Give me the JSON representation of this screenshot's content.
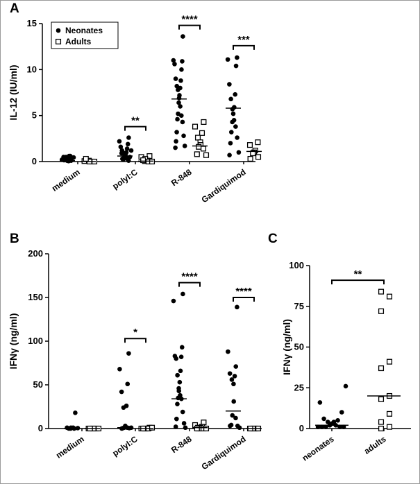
{
  "chart_data": [
    {
      "panel": "A",
      "type": "scatter",
      "ylabel": "IL-12 (IU/ml)",
      "ylim": [
        0,
        15
      ],
      "yticks": [
        0,
        5,
        10,
        15
      ],
      "categories": [
        "medium",
        "polyI:C",
        "R-848",
        "Gardiquimod"
      ],
      "legend": {
        "position": "top-left",
        "entries": [
          {
            "label": "Neonates",
            "marker": "filled-circle"
          },
          {
            "label": "Adults",
            "marker": "open-square"
          }
        ]
      },
      "series": [
        {
          "name": "Neonates",
          "marker": "circle",
          "points": [
            [
              [
                0.1,
                0.2,
                0.3,
                0.5,
                0.6,
                0.4,
                0.2,
                0.3,
                0.1,
                0.05,
                0.5,
                0.6,
                0.2,
                0.35,
                0.15,
                0.45
              ],
              0.1
            ],
            [
              [
                2.6,
                2.2,
                1.9,
                1.6,
                1.4,
                1.2,
                1.0,
                0.9,
                0.8,
                0.7,
                0.6,
                0.5,
                0.4,
                0.3,
                0.2,
                0.1,
                0.3,
                0.5,
                0.9,
                1.2
              ],
              0.6
            ],
            [
              [
                13.6,
                11.0,
                10.9,
                10.6,
                10.0,
                9.0,
                8.8,
                8.2,
                8.0,
                7.8,
                7.2,
                6.9,
                6.4,
                6.0,
                5.2,
                5.0,
                4.6,
                4.3,
                3.2,
                2.8,
                2.2,
                1.7,
                1.5
              ],
              6.8
            ],
            [
              [
                11.3,
                11.1,
                10.4,
                8.4,
                7.3,
                6.8,
                5.9,
                5.7,
                5.2,
                4.5,
                4.3,
                3.8,
                3.2,
                2.6,
                2.0,
                1.0,
                0.7
              ],
              5.8
            ]
          ]
        },
        {
          "name": "Adults",
          "marker": "square",
          "points": [
            [
              [
                0.0,
                0.05,
                0.1,
                0.0,
                0.3,
                0.0
              ],
              0.0
            ],
            [
              [
                0.6,
                0.5,
                0.1,
                0.05,
                0.3,
                0.0,
                0.15,
                0.0
              ],
              0.05
            ],
            [
              [
                4.3,
                3.8,
                3.1,
                2.6,
                2.1,
                1.8,
                1.6,
                1.4,
                0.8,
                0.7
              ],
              1.7
            ],
            [
              [
                2.1,
                1.8,
                1.2,
                1.0,
                0.9,
                0.5,
                0.3
              ],
              1.1
            ]
          ]
        }
      ],
      "significance": [
        {
          "pair": 1,
          "label": "**",
          "y": 3.8
        },
        {
          "pair": 2,
          "label": "****",
          "y": 14.8
        },
        {
          "pair": 3,
          "label": "***",
          "y": 12.6
        }
      ]
    },
    {
      "panel": "B",
      "type": "scatter",
      "ylabel": "IFNγ (ng/ml)",
      "ylim": [
        0,
        200
      ],
      "yticks": [
        0,
        50,
        100,
        150,
        200
      ],
      "categories": [
        "medium",
        "polyI:C",
        "R-848",
        "Gardiquimod"
      ],
      "series": [
        {
          "name": "Neonates",
          "marker": "circle",
          "points": [
            [
              [
                18,
                1,
                1,
                0,
                1,
                0,
                0,
                0.5
              ],
              0
            ],
            [
              [
                86,
                68,
                51,
                42,
                26,
                24,
                3,
                2,
                1,
                1,
                0.5,
                0.5,
                0,
                1
              ],
              1
            ],
            [
              [
                154,
                146,
                93,
                83,
                82,
                80,
                66,
                61,
                53,
                46,
                43,
                38,
                35,
                34,
                28,
                19,
                11,
                6,
                2,
                1
              ],
              34
            ],
            [
              [
                139,
                88,
                71,
                63,
                60,
                56,
                51,
                31,
                15,
                12,
                4,
                3,
                3,
                1
              ],
              20
            ]
          ]
        },
        {
          "name": "Adults",
          "marker": "square",
          "points": [
            [
              [
                0,
                0,
                0,
                0,
                0,
                0
              ],
              0
            ],
            [
              [
                1,
                0,
                0,
                0,
                0,
                0,
                0,
                1
              ],
              0
            ],
            [
              [
                7,
                4,
                2,
                1,
                1,
                0,
                0,
                0,
                0,
                0
              ],
              1
            ],
            [
              [
                0,
                0,
                0,
                0,
                0,
                0,
                0
              ],
              0
            ]
          ]
        }
      ],
      "significance": [
        {
          "pair": 1,
          "label": "*",
          "y": 103
        },
        {
          "pair": 2,
          "label": "****",
          "y": 167
        },
        {
          "pair": 3,
          "label": "****",
          "y": 150
        }
      ]
    },
    {
      "panel": "C",
      "type": "scatter",
      "ylabel": "IFNγ (ng/ml)",
      "ylim": [
        0,
        100
      ],
      "yticks": [
        0,
        25,
        50,
        75,
        100
      ],
      "categories": [
        "neonates",
        "adults"
      ],
      "series": [
        {
          "name": "neonates",
          "marker": "circle",
          "values": [
            26,
            16,
            10,
            6,
            5,
            4,
            4,
            3,
            2,
            2,
            1,
            1,
            1,
            1,
            1
          ],
          "median": 2
        },
        {
          "name": "adults",
          "marker": "square",
          "values": [
            84,
            81,
            72,
            41,
            37,
            20,
            18,
            9,
            4,
            1,
            0
          ],
          "median": 20
        }
      ],
      "significance": [
        {
          "label": "**",
          "y": 91
        }
      ]
    }
  ]
}
